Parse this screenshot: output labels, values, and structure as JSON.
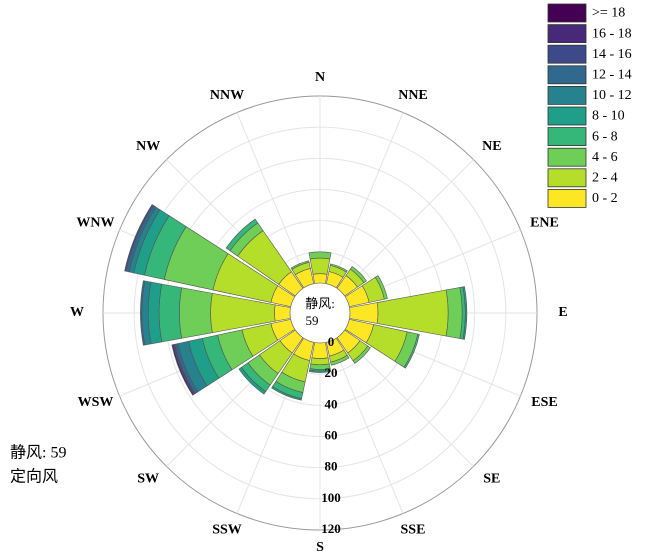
{
  "chart_data": {
    "type": "windrose",
    "directions": [
      "N",
      "NNE",
      "NE",
      "ENE",
      "E",
      "ESE",
      "SE",
      "SSE",
      "S",
      "SSW",
      "SW",
      "WSW",
      "W",
      "WNW",
      "NW",
      "NNW"
    ],
    "series": [
      {
        "name": "0 - 2",
        "color": "#fde725",
        "values": [
          6,
          8,
          10,
          13,
          18,
          16,
          12,
          9,
          10,
          12,
          12,
          13,
          10,
          13,
          13,
          10
        ]
      },
      {
        "name": "2 - 4",
        "color": "#b5de2b",
        "values": [
          10,
          4,
          5,
          10,
          45,
          22,
          6,
          4,
          4,
          14,
          16,
          19,
          41,
          38,
          32,
          4
        ]
      },
      {
        "name": "4 - 6",
        "color": "#6ece58",
        "values": [
          4,
          1,
          2,
          2,
          9,
          7,
          2,
          2,
          3,
          7,
          9,
          16,
          20,
          32,
          6,
          1
        ]
      },
      {
        "name": "6 - 8",
        "color": "#35b779",
        "values": [
          0,
          0,
          0,
          0,
          2,
          1,
          0,
          0,
          1,
          4,
          5,
          10,
          13,
          13,
          3,
          0
        ]
      },
      {
        "name": "8 - 10",
        "color": "#1f9e89",
        "values": [
          0,
          0,
          0,
          0,
          1,
          0,
          0,
          0,
          1,
          1,
          2,
          9,
          7,
          7,
          0,
          0
        ]
      },
      {
        "name": "10 - 12",
        "color": "#26828e",
        "values": [
          0,
          0,
          0,
          0,
          0,
          0,
          0,
          0,
          0,
          0,
          0,
          7,
          4,
          3,
          0,
          0
        ]
      },
      {
        "name": "12 - 14",
        "color": "#31688e",
        "values": [
          0,
          0,
          0,
          0,
          0,
          0,
          0,
          0,
          0,
          0,
          0,
          2,
          1,
          2,
          0,
          0
        ]
      },
      {
        "name": "14 - 16",
        "color": "#3e4989",
        "values": [
          0,
          0,
          0,
          0,
          0,
          0,
          0,
          0,
          0,
          0,
          0,
          1,
          0,
          1,
          0,
          0
        ]
      },
      {
        "name": "16 - 18",
        "color": "#482878",
        "values": [
          0,
          0,
          0,
          0,
          0,
          0,
          0,
          0,
          0,
          0,
          0,
          1,
          0,
          0,
          0,
          0
        ]
      },
      {
        "name": ">= 18",
        "color": "#440154",
        "values": [
          0,
          0,
          0,
          0,
          0,
          0,
          0,
          0,
          0,
          0,
          0,
          0,
          0,
          0,
          0,
          0
        ]
      }
    ],
    "rlim": [
      0,
      120
    ],
    "rticks": [
      0,
      20,
      40,
      60,
      80,
      100,
      120
    ],
    "grid": true,
    "center_label": "静风:",
    "calm_count": 59,
    "annotations": [
      "静风: 59",
      "定向风"
    ],
    "legend": "upper right"
  }
}
